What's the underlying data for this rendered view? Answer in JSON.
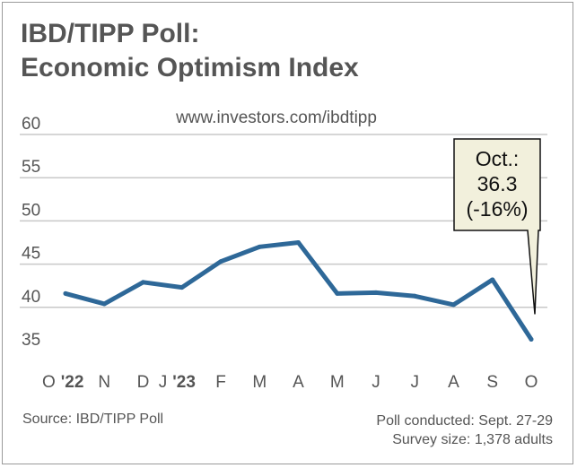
{
  "title_line1": "IBD/TIPP Poll:",
  "title_line2": "Economic Optimism Index",
  "url": "www.investors.com/ibdtipp",
  "source": "Source: IBD/TIPP Poll",
  "poll_conducted": "Poll conducted: Sept. 27-29",
  "survey_size": "Survey size: 1,378 adults",
  "callout": {
    "line1": "Oct.:",
    "line2": "36.3",
    "line3": "(-16%)"
  },
  "colors": {
    "line": "#2e6898",
    "grid": "#c8c8c8",
    "text": "#555555",
    "callout_bg": "#f2f0dc"
  },
  "chart_data": {
    "type": "line",
    "title": "IBD/TIPP Poll: Economic Optimism Index",
    "xlabel": "",
    "ylabel": "",
    "categories": [
      "O '22",
      "N",
      "D",
      "J '23",
      "F",
      "M",
      "A",
      "M",
      "J",
      "J",
      "A",
      "S",
      "O"
    ],
    "x_tick_labels": [
      {
        "main": "O",
        "suffix": "'22"
      },
      {
        "main": "N",
        "suffix": ""
      },
      {
        "main": "D",
        "suffix": ""
      },
      {
        "main": "J",
        "suffix": "'23"
      },
      {
        "main": "F",
        "suffix": ""
      },
      {
        "main": "M",
        "suffix": ""
      },
      {
        "main": "A",
        "suffix": ""
      },
      {
        "main": "M",
        "suffix": ""
      },
      {
        "main": "J",
        "suffix": ""
      },
      {
        "main": "J",
        "suffix": ""
      },
      {
        "main": "A",
        "suffix": ""
      },
      {
        "main": "S",
        "suffix": ""
      },
      {
        "main": "O",
        "suffix": ""
      }
    ],
    "series": [
      {
        "name": "Economic Optimism Index",
        "values": [
          41.6,
          40.4,
          42.9,
          42.3,
          45.3,
          47.0,
          47.5,
          41.6,
          41.7,
          41.3,
          40.3,
          43.2,
          36.3
        ]
      }
    ],
    "ylim": [
      35,
      60
    ],
    "yticks": [
      35,
      40,
      45,
      50,
      55,
      60
    ],
    "grid": true
  }
}
